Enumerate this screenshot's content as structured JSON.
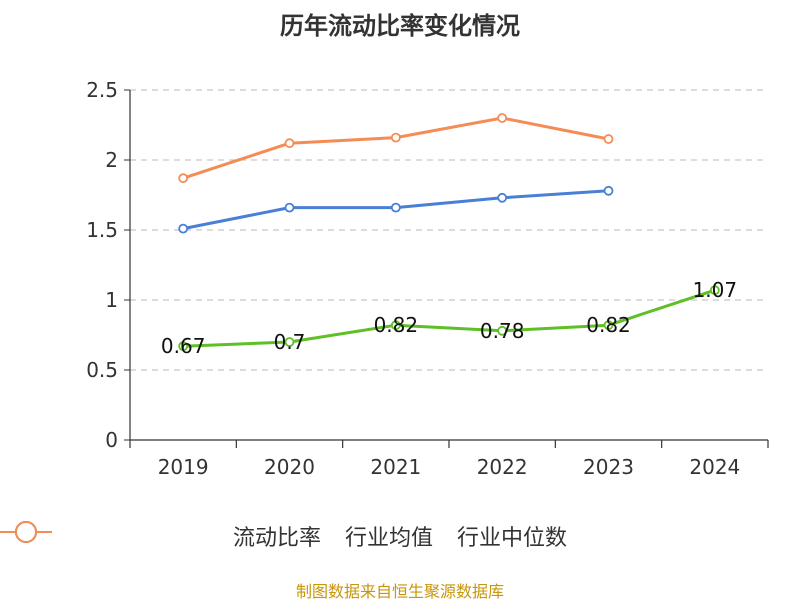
{
  "chart_data": {
    "type": "line",
    "title": "历年流动比率变化情况",
    "categories": [
      "2019",
      "2020",
      "2021",
      "2022",
      "2023",
      "2024"
    ],
    "ylim": [
      0,
      2.5
    ],
    "yticks": [
      "0",
      "0.5",
      "1",
      "1.5",
      "2",
      "2.5"
    ],
    "ytick_values": [
      0,
      0.5,
      1,
      1.5,
      2,
      2.5
    ],
    "grid": true,
    "legend_position": "bottom",
    "series": [
      {
        "name": "流动比率",
        "color": "#5fbf26",
        "values": [
          0.67,
          0.7,
          0.82,
          0.78,
          0.82,
          1.07
        ],
        "labels": [
          "0.67",
          "0.7",
          "0.82",
          "0.78",
          "0.82",
          "1.07"
        ],
        "show_labels": true
      },
      {
        "name": "行业均值",
        "color": "#4a7fd6",
        "values": [
          1.51,
          1.66,
          1.66,
          1.73,
          1.78,
          null
        ],
        "show_labels": false
      },
      {
        "name": "行业中位数",
        "color": "#f58c55",
        "values": [
          1.87,
          2.12,
          2.16,
          2.3,
          2.15,
          null
        ],
        "show_labels": false
      }
    ]
  },
  "source": "制图数据来自恒生聚源数据库"
}
